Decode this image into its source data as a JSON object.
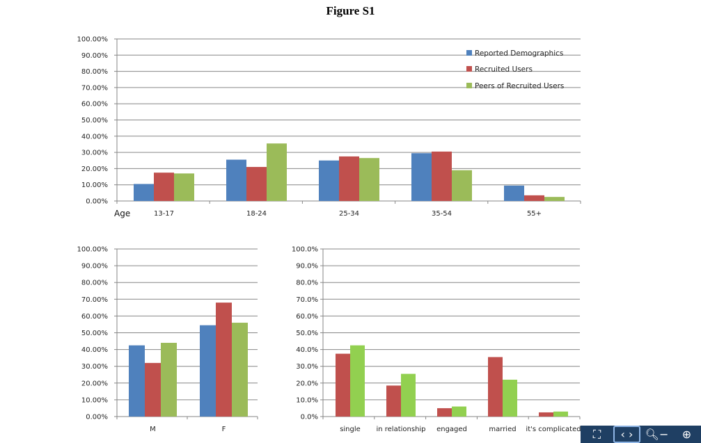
{
  "figure_title": "Figure S1",
  "colors": {
    "reported": "#4F81BD",
    "recruited": "#C0504D",
    "peers": "#9BBB59",
    "relationship_green": "#92D050"
  },
  "toolbar": {
    "icons": [
      "fit-page-icon",
      "fit-width-icon",
      "zoom-out-icon",
      "zoom-in-icon"
    ]
  },
  "chart_data": [
    {
      "type": "bar",
      "title": "",
      "xlabel": "Age",
      "ylabel": "",
      "ylim": [
        0,
        100
      ],
      "yticks": [
        "0.00%",
        "10.00%",
        "20.00%",
        "30.00%",
        "40.00%",
        "50.00%",
        "60.00%",
        "70.00%",
        "80.00%",
        "90.00%",
        "100.00%"
      ],
      "categories": [
        "13-17",
        "18-24",
        "25-34",
        "35-54",
        "55+"
      ],
      "series": [
        {
          "name": "Reported Demographics",
          "color": "#4F81BD",
          "values": [
            10.5,
            25.5,
            25,
            29.5,
            9.5
          ]
        },
        {
          "name": "Recruited Users",
          "color": "#C0504D",
          "values": [
            17.5,
            21,
            27.5,
            30.5,
            3.5
          ]
        },
        {
          "name": "Peers of Recruited Users",
          "color": "#9BBB59",
          "values": [
            17,
            35.5,
            26.5,
            19,
            2.5
          ]
        }
      ],
      "legend": "right",
      "grid": true
    },
    {
      "type": "bar",
      "title": "",
      "xlabel": "",
      "ylabel": "",
      "ylim": [
        0,
        100
      ],
      "yticks": [
        "0.00%",
        "10.00%",
        "20.00%",
        "30.00%",
        "40.00%",
        "50.00%",
        "60.00%",
        "70.00%",
        "80.00%",
        "90.00%",
        "100.00%"
      ],
      "categories": [
        "M",
        "F"
      ],
      "series": [
        {
          "color": "#4F81BD",
          "values": [
            42.5,
            54.5
          ]
        },
        {
          "color": "#C0504D",
          "values": [
            32,
            68
          ]
        },
        {
          "color": "#9BBB59",
          "values": [
            44,
            56
          ]
        }
      ],
      "grid": true
    },
    {
      "type": "bar",
      "title": "",
      "xlabel": "",
      "ylabel": "",
      "ylim": [
        0,
        100
      ],
      "yticks": [
        "0.0%",
        "10.0%",
        "20.0%",
        "30.0%",
        "40.0%",
        "50.0%",
        "60.0%",
        "70.0%",
        "80.0%",
        "90.0%",
        "100.0%"
      ],
      "categories": [
        "single",
        "in relationship",
        "engaged",
        "married",
        "it's complicated"
      ],
      "series": [
        {
          "color": "#C0504D",
          "values": [
            37.5,
            18.5,
            5,
            35.5,
            2.5
          ]
        },
        {
          "color": "#92D050",
          "values": [
            42.5,
            25.5,
            6,
            22,
            3
          ]
        }
      ],
      "grid": true
    }
  ]
}
